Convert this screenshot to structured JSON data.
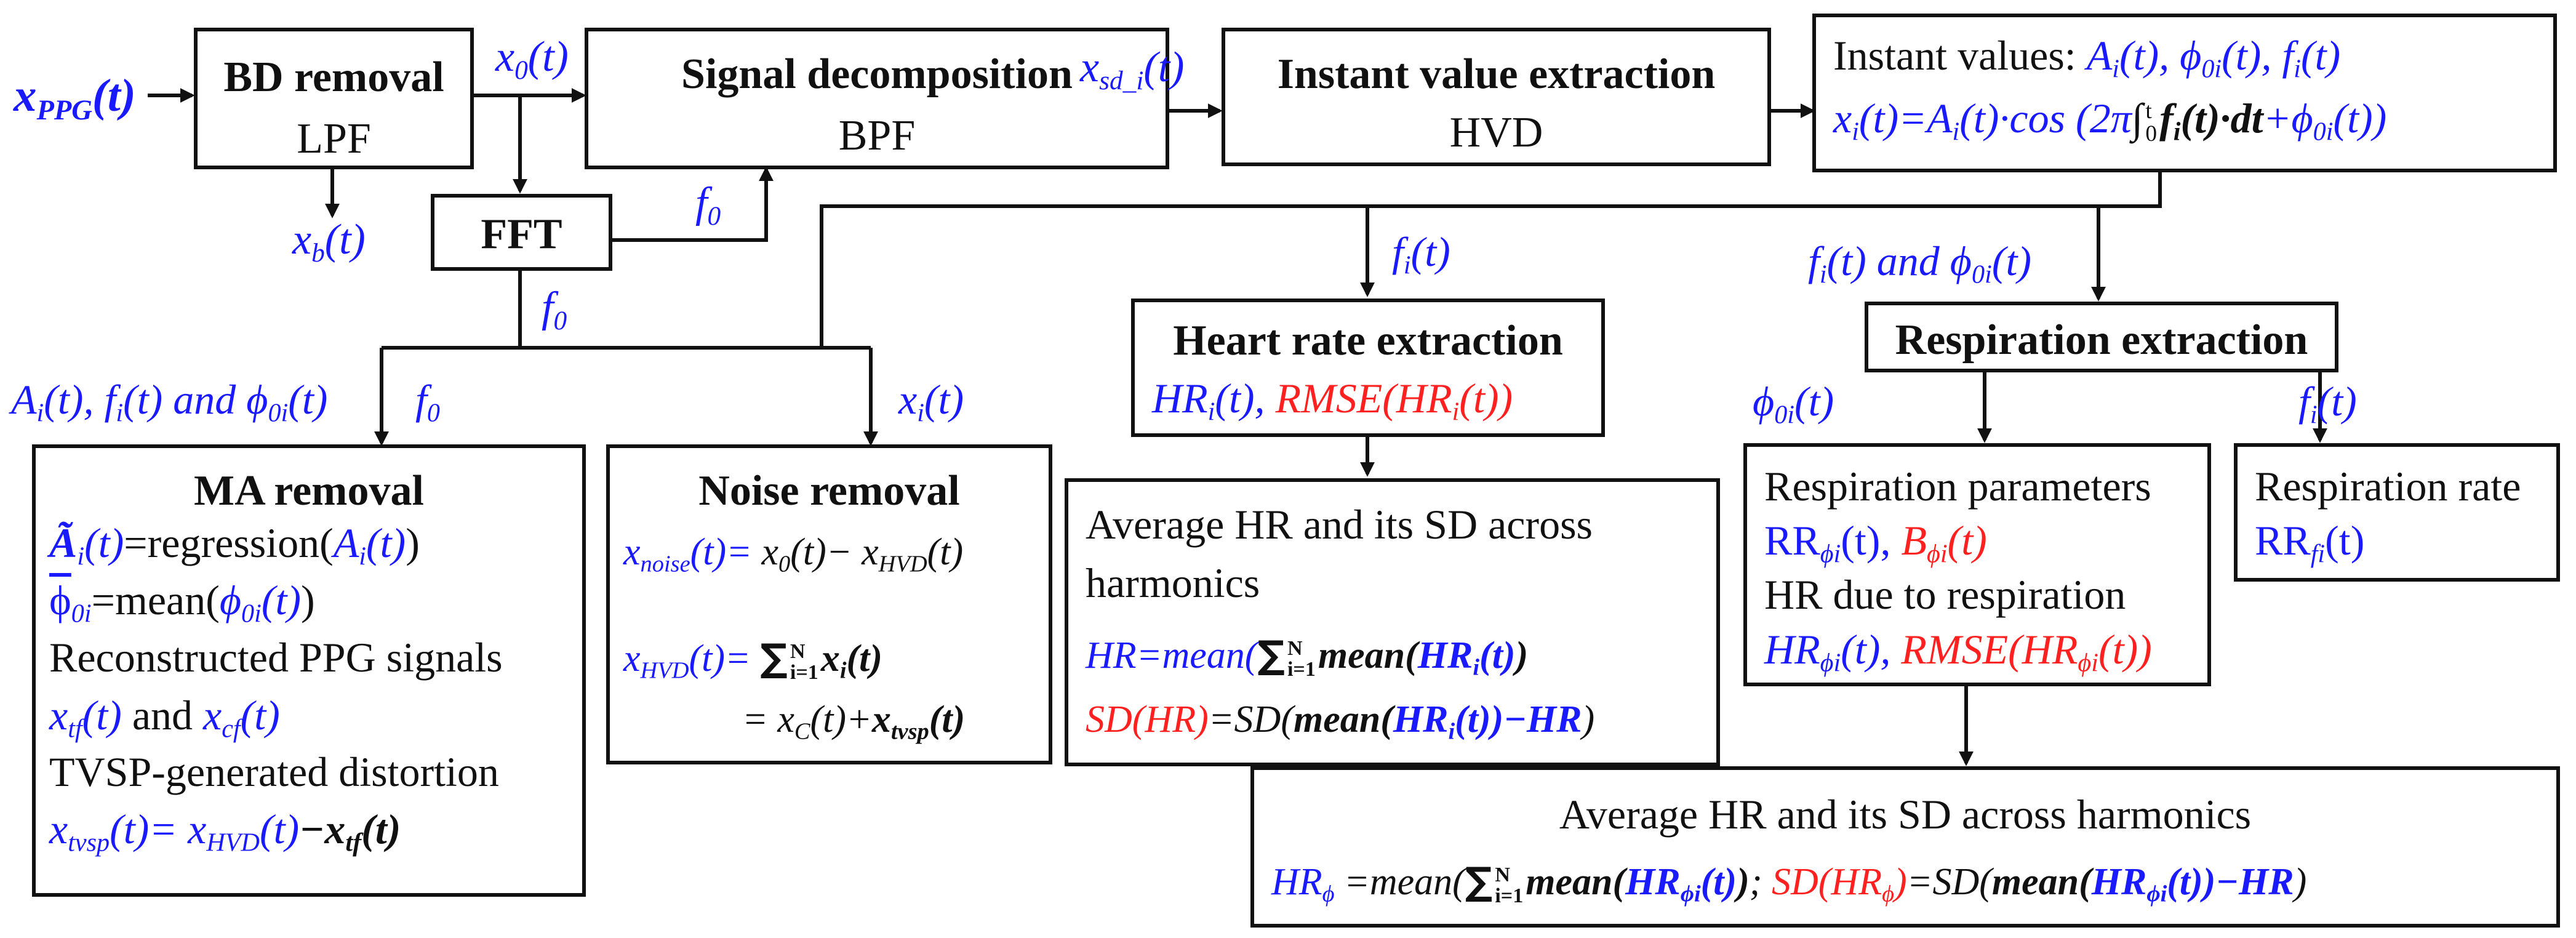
{
  "colors": {
    "signal": "#1a1aff",
    "error": "#ff2020",
    "line": "#111111"
  },
  "input": {
    "x_ppg": "x",
    "x_ppg_sub": "PPG",
    "x_ppg_arg": "(t)"
  },
  "bd": {
    "title": "BD removal",
    "sub": "LPF",
    "out_x0": "x",
    "out_x0_sub": "0",
    "out_x0_arg": "(t)",
    "out_xb": "x",
    "out_xb_sub": "b",
    "out_xb_arg": "(t)"
  },
  "fft": {
    "title": "FFT",
    "f0_a": "f",
    "f0_a_sub": "0",
    "f0_b": "f",
    "f0_b_sub": "0"
  },
  "sd": {
    "title": "Signal decomposition",
    "sub": "BPF",
    "out": "x",
    "out_sub": "sd_i",
    "out_arg": "(t)"
  },
  "ive": {
    "title": "Instant value extraction",
    "sub": "HVD"
  },
  "iv": {
    "line1_label": "Instant values: ",
    "line1_vals": "A",
    "line2": "x"
  },
  "labels": {
    "ma_in": "A",
    "ma_in_f0": "f",
    "noise_in": "x",
    "hr_in": "f",
    "resp_in": "f",
    "resp_phi": "ϕ",
    "resp_f": "f"
  },
  "ma": {
    "title": "MA removal",
    "l1_suffix": "=regression(",
    "l2_suffix": "=mean(",
    "l3": "Reconstructed  PPG signals",
    "l4_and": " and ",
    "l5": "TVSP-generated distortion"
  },
  "noise": {
    "title": "Noise removal"
  },
  "hr": {
    "title": "Heart rate extraction"
  },
  "avg1": {
    "l1": "Average HR and its SD across",
    "l2": "harmonics"
  },
  "resp": {
    "title": "Respiration extraction"
  },
  "rp": {
    "l1": "Respiration parameters",
    "l3": "HR due to respiration"
  },
  "rr": {
    "l1": "Respiration rate"
  },
  "avg2": {
    "title": "Average HR and its SD across harmonics"
  }
}
